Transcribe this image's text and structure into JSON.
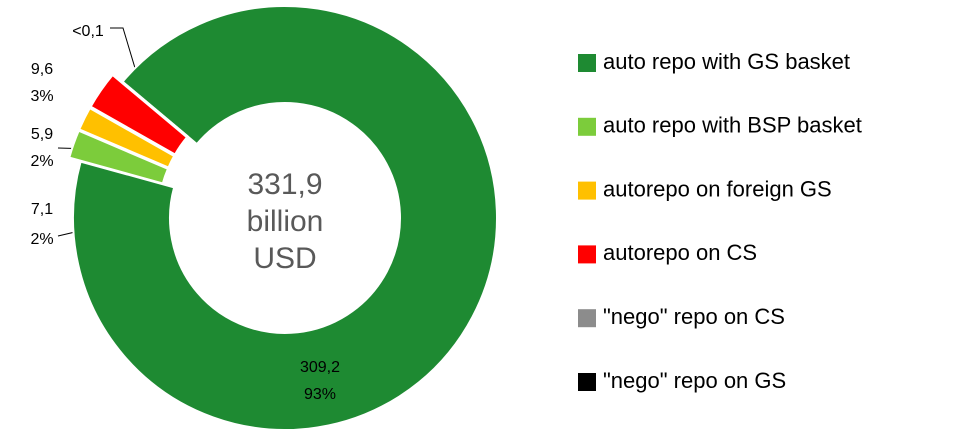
{
  "chart_data": {
    "type": "donut",
    "categories": [
      "auto repo with GS basket",
      "auto repo with BSP basket",
      "autorepo on foreign GS",
      "autorepo on CS",
      "\"nego\" repo on CS",
      "\"nego\" repo on GS"
    ],
    "values": [
      309.2,
      7.1,
      5.9,
      9.6,
      0.05,
      null
    ],
    "value_labels": [
      "309,2",
      "7,1",
      "5,9",
      "9,6",
      "<0,1",
      null
    ],
    "percents": [
      93,
      2,
      2,
      3,
      null,
      null
    ],
    "percent_labels": [
      "93%",
      "2%",
      "2%",
      "3%",
      null,
      null
    ],
    "colors": [
      "#1e8a32",
      "#7ccc3b",
      "#ffc000",
      "#ff0000",
      "#8c8c8c",
      "#000000"
    ],
    "total": 331.9,
    "total_label": "331,9",
    "total_unit_lines": [
      "billion",
      "USD"
    ],
    "legend": "right"
  }
}
